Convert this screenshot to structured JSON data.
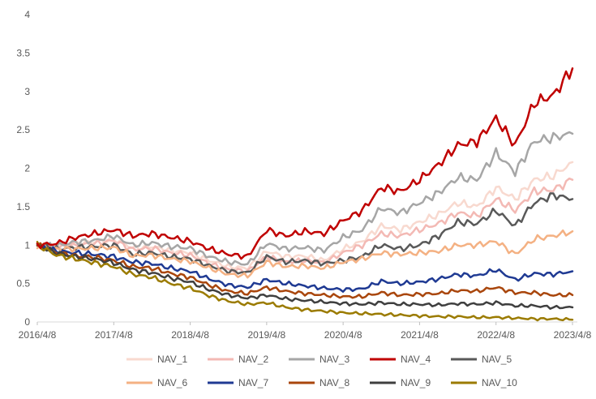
{
  "chart_data": {
    "type": "line",
    "title": "",
    "xlabel": "",
    "ylabel": "",
    "ylim": [
      0,
      4
    ],
    "yticks": [
      0,
      0.5,
      1,
      1.5,
      2,
      2.5,
      3,
      3.5,
      4
    ],
    "ytick_labels": [
      "0",
      "0.5",
      "1",
      "1.5",
      "2",
      "2.5",
      "3",
      "3.5",
      "4"
    ],
    "xlim": [
      0,
      7
    ],
    "x_ticks": [
      0,
      1,
      2,
      3,
      4,
      5,
      6,
      7
    ],
    "x_tick_labels": [
      "2016/4/8",
      "2017/4/8",
      "2018/4/8",
      "2019/4/8",
      "2020/4/8",
      "2021/4/8",
      "2022/4/8",
      "2023/4/8"
    ],
    "x": [
      0,
      0.25,
      0.5,
      0.75,
      1,
      1.25,
      1.5,
      1.75,
      2,
      2.25,
      2.5,
      2.75,
      3,
      3.25,
      3.5,
      3.75,
      4,
      4.25,
      4.5,
      4.75,
      5,
      5.25,
      5.5,
      5.75,
      6,
      6.25,
      6.5,
      6.75,
      7
    ],
    "legend_position": "bottom",
    "grid": false,
    "series": [
      {
        "name": "NAV_1",
        "color": "#F8D9CF",
        "values": [
          1.0,
          0.98,
          1.02,
          1.04,
          1.08,
          0.96,
          0.98,
          0.93,
          0.9,
          0.8,
          0.72,
          0.7,
          0.92,
          0.85,
          0.86,
          0.8,
          0.95,
          1.05,
          1.25,
          1.2,
          1.3,
          1.4,
          1.55,
          1.5,
          1.75,
          1.6,
          1.85,
          1.9,
          2.08
        ]
      },
      {
        "name": "NAV_2",
        "color": "#F3B9B4",
        "values": [
          1.0,
          0.97,
          1.0,
          1.02,
          1.06,
          0.94,
          0.96,
          0.9,
          0.87,
          0.76,
          0.68,
          0.66,
          0.85,
          0.78,
          0.8,
          0.77,
          0.9,
          1.0,
          1.15,
          1.12,
          1.2,
          1.28,
          1.42,
          1.38,
          1.6,
          1.45,
          1.7,
          1.72,
          1.85
        ]
      },
      {
        "name": "NAV_3",
        "color": "#A6A6A6",
        "values": [
          1.0,
          0.99,
          1.04,
          1.06,
          1.12,
          1.0,
          1.03,
          0.98,
          0.96,
          0.85,
          0.78,
          0.75,
          1.02,
          0.95,
          0.97,
          0.93,
          1.1,
          1.2,
          1.48,
          1.42,
          1.55,
          1.68,
          1.88,
          1.85,
          2.2,
          1.95,
          2.35,
          2.4,
          2.45
        ]
      },
      {
        "name": "NAV_4",
        "color": "#C00000",
        "values": [
          1.0,
          1.02,
          1.1,
          1.15,
          1.2,
          1.12,
          1.15,
          1.1,
          1.05,
          0.95,
          0.88,
          0.85,
          1.2,
          1.12,
          1.18,
          1.15,
          1.32,
          1.45,
          1.75,
          1.7,
          1.85,
          2.05,
          2.3,
          2.35,
          2.65,
          2.3,
          2.85,
          2.95,
          3.3
        ]
      },
      {
        "name": "NAV_5",
        "color": "#595959",
        "values": [
          1.0,
          0.95,
          0.97,
          0.98,
          1.0,
          0.88,
          0.9,
          0.85,
          0.82,
          0.73,
          0.66,
          0.64,
          0.85,
          0.78,
          0.8,
          0.76,
          0.8,
          0.85,
          1.0,
          0.95,
          1.0,
          1.12,
          1.3,
          1.28,
          1.45,
          1.25,
          1.55,
          1.65,
          1.6
        ]
      },
      {
        "name": "NAV_6",
        "color": "#F4B183",
        "values": [
          1.0,
          0.95,
          0.95,
          0.96,
          0.97,
          0.86,
          0.87,
          0.82,
          0.79,
          0.7,
          0.62,
          0.6,
          0.78,
          0.72,
          0.73,
          0.7,
          0.78,
          0.82,
          0.9,
          0.88,
          0.9,
          0.92,
          1.0,
          1.0,
          1.05,
          0.88,
          1.08,
          1.12,
          1.18
        ]
      },
      {
        "name": "NAV_7",
        "color": "#1F3A93",
        "values": [
          1.0,
          0.92,
          0.9,
          0.88,
          0.85,
          0.78,
          0.76,
          0.7,
          0.66,
          0.56,
          0.48,
          0.45,
          0.55,
          0.5,
          0.47,
          0.44,
          0.42,
          0.43,
          0.53,
          0.5,
          0.52,
          0.56,
          0.62,
          0.6,
          0.68,
          0.55,
          0.63,
          0.62,
          0.66
        ]
      },
      {
        "name": "NAV_8",
        "color": "#A9460C",
        "values": [
          1.0,
          0.9,
          0.86,
          0.84,
          0.8,
          0.72,
          0.7,
          0.63,
          0.58,
          0.48,
          0.4,
          0.37,
          0.45,
          0.4,
          0.37,
          0.35,
          0.33,
          0.33,
          0.38,
          0.35,
          0.36,
          0.37,
          0.41,
          0.4,
          0.45,
          0.38,
          0.38,
          0.35,
          0.35
        ]
      },
      {
        "name": "NAV_9",
        "color": "#3F3F3F",
        "values": [
          1.0,
          0.9,
          0.85,
          0.82,
          0.77,
          0.68,
          0.64,
          0.57,
          0.52,
          0.42,
          0.35,
          0.31,
          0.35,
          0.3,
          0.28,
          0.26,
          0.24,
          0.23,
          0.25,
          0.23,
          0.23,
          0.22,
          0.24,
          0.23,
          0.25,
          0.21,
          0.21,
          0.19,
          0.19
        ]
      },
      {
        "name": "NAV_10",
        "color": "#9B7B00",
        "values": [
          1.0,
          0.87,
          0.82,
          0.77,
          0.72,
          0.62,
          0.58,
          0.5,
          0.44,
          0.34,
          0.27,
          0.23,
          0.25,
          0.19,
          0.16,
          0.14,
          0.12,
          0.11,
          0.1,
          0.09,
          0.08,
          0.07,
          0.07,
          0.06,
          0.06,
          0.05,
          0.04,
          0.04,
          0.03
        ]
      }
    ]
  }
}
